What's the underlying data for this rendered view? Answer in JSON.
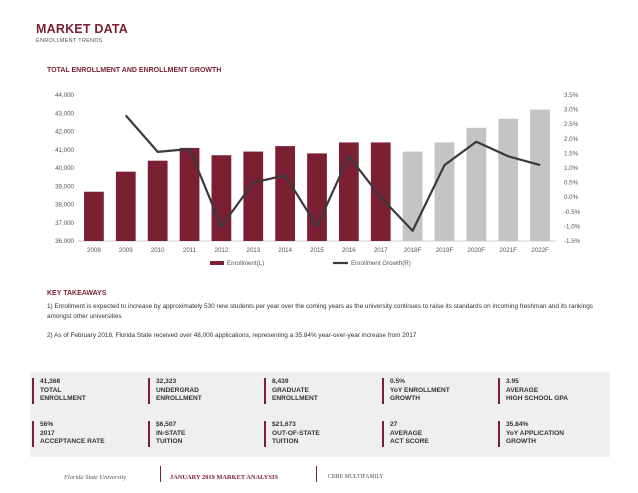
{
  "header": {
    "title": "MARKET DATA",
    "subtitle": "ENROLLMENT TRENDS"
  },
  "chart_heading": "TOTAL ENROLLMENT AND ENROLLMENT GROWTH",
  "chart_data": {
    "type": "bar",
    "categories": [
      "2008",
      "2009",
      "2010",
      "2011",
      "2012",
      "2013",
      "2014",
      "2015",
      "2016",
      "2017",
      "2018F",
      "2019F",
      "2020F",
      "2021F",
      "2022F"
    ],
    "series": [
      {
        "name": "Enrollment(L)",
        "type": "bar",
        "axis": "left",
        "values": [
          38700,
          39800,
          40400,
          41100,
          40700,
          40900,
          41200,
          40800,
          41400,
          41400,
          40900,
          41400,
          42200,
          42700,
          43200
        ],
        "colors": [
          "#7a1f34",
          "#7a1f34",
          "#7a1f34",
          "#7a1f34",
          "#7a1f34",
          "#7a1f34",
          "#7a1f34",
          "#7a1f34",
          "#7a1f34",
          "#7a1f34",
          "#c4c4c4",
          "#c4c4c4",
          "#c4c4c4",
          "#c4c4c4",
          "#c4c4c4"
        ]
      },
      {
        "name": "Enrollment Growth(R)",
        "type": "line",
        "axis": "right",
        "color": "#3a3a3a",
        "values": [
          null,
          2.8,
          1.55,
          1.65,
          -1.0,
          0.5,
          0.75,
          -1.0,
          1.4,
          0.0,
          -1.15,
          1.1,
          1.9,
          1.4,
          1.1
        ]
      }
    ],
    "y_left": {
      "min": 36000,
      "max": 44000,
      "ticks": [
        "36,000",
        "37,000",
        "38,000",
        "39,000",
        "40,000",
        "41,000",
        "42,000",
        "43,000",
        "44,000"
      ]
    },
    "y_right": {
      "min": -1.5,
      "max": 3.5,
      "ticks": [
        "-1.5%",
        "-1.0%",
        "-0.5%",
        "0.0%",
        "0.5%",
        "1.0%",
        "1.5%",
        "2.0%",
        "2.5%",
        "3.0%",
        "3.5%"
      ]
    },
    "legend": {
      "placement": "bottom"
    }
  },
  "takeaways": {
    "title": "KEY TAKEAWAYS",
    "items": [
      "1) Enrollment is expected to increase by approximately 530 new students per year over the coming years as the university continues to raise its standards on incoming freshman and its rankings amongst other universities",
      "2) As of February 2018, Florida State received over 48,000 applications, representing a 35.84% year-over-year increase from 2017"
    ]
  },
  "stats": [
    {
      "value": "41,368",
      "l1": "TOTAL",
      "l2": "ENROLLMENT"
    },
    {
      "value": "32,323",
      "l1": "UNDERGRAD",
      "l2": "ENROLLMENT"
    },
    {
      "value": "8,439",
      "l1": "GRADUATE",
      "l2": "ENROLLMENT"
    },
    {
      "value": "0.5%",
      "l1": "YoY ENROLLMENT",
      "l2": "GROWTH"
    },
    {
      "value": "3.95",
      "l1": "AVERAGE",
      "l2": "HIGH SCHOOL GPA"
    },
    {
      "value": "56%",
      "l1": "2017",
      "l2": "ACCEPTANCE RATE"
    },
    {
      "value": "$6,507",
      "l1": "IN-STATE",
      "l2": "TUITION"
    },
    {
      "value": "$21,673",
      "l1": "OUT-OF-STATE",
      "l2": "TUITION"
    },
    {
      "value": "27",
      "l1": "AVERAGE",
      "l2": "ACT SCORE"
    },
    {
      "value": "35.84%",
      "l1": "YoY APPLICATION",
      "l2": "GROWTH"
    }
  ],
  "footer": {
    "university": "Florida State University",
    "report": "JANUARY 2019 MARKET ANALYSIS",
    "brand": "CBRE MULTIFAMILY"
  }
}
